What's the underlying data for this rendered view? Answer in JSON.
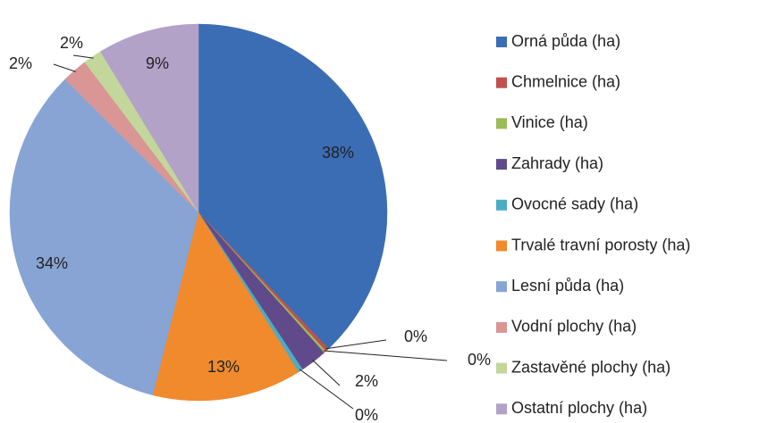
{
  "chart_data": {
    "type": "pie",
    "categories": [
      "Orná půda (ha)",
      "Chmelnice (ha)",
      "Vinice (ha)",
      "Zahrady (ha)",
      "Ovocné sady (ha)",
      "Trvalé travní porosty (ha)",
      "Lesní půda (ha)",
      "Vodní plochy (ha)",
      "Zastavěné plochy (ha)",
      "Ostatní plochy (ha)"
    ],
    "values": [
      37.9,
      0.3,
      0.2,
      2.3,
      0.4,
      12.8,
      33.6,
      2.2,
      1.6,
      8.7
    ],
    "value_labels": [
      "38%",
      "0%",
      "0%",
      "2%",
      "0%",
      "13%",
      "34%",
      "2%",
      "2%",
      "9%"
    ],
    "colors": [
      "#3b6db4",
      "#c0504d",
      "#9bbb59",
      "#604a8b",
      "#4bacc6",
      "#f08a2c",
      "#87a4d4",
      "#d99694",
      "#c3d69b",
      "#b3a2c7"
    ],
    "legend": "right"
  }
}
